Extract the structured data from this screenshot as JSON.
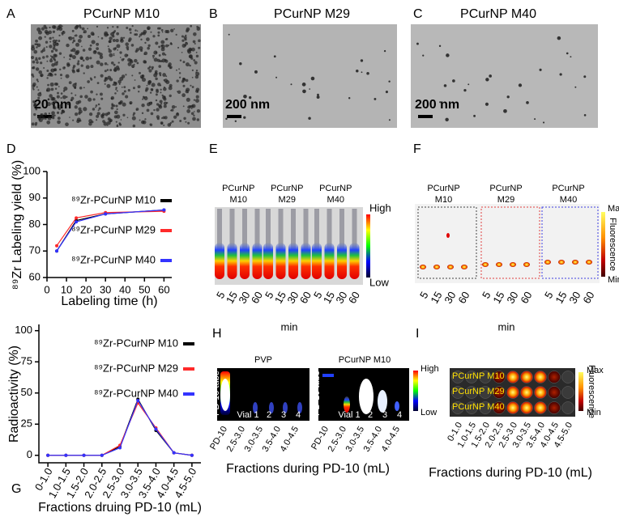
{
  "panels": {
    "A": {
      "label": "A",
      "title": "PCurNP M10",
      "scale_bar": "20 nm"
    },
    "B": {
      "label": "B",
      "title": "PCurNP M29",
      "scale_bar": "200 nm"
    },
    "C": {
      "label": "C",
      "title": "PCurNP M40",
      "scale_bar": "200 nm"
    },
    "E": {
      "label": "E",
      "groups": [
        [
          "PCurNP",
          "M10"
        ],
        [
          "PCurNP",
          "M29"
        ],
        [
          "PCurNP",
          "M40"
        ]
      ],
      "x_labels": [
        "5",
        "15",
        "30",
        "60"
      ],
      "x_title": "min",
      "colorbar": [
        "High",
        "Low"
      ]
    },
    "F": {
      "label": "F",
      "groups": [
        [
          "PCurNP",
          "M10"
        ],
        [
          "PCurNP",
          "M29"
        ],
        [
          "PCurNP",
          "M40"
        ]
      ],
      "x_labels": [
        "5",
        "15",
        "30",
        "60"
      ],
      "x_title": "min",
      "colorbar": [
        "Max",
        "Fluorescence",
        "Min"
      ]
    },
    "H": {
      "label": "H",
      "groups": [
        "PVP",
        "PCurNP M10"
      ],
      "tube": "PD-10 tube",
      "vials": [
        "Vial 1",
        "2",
        "3",
        "4"
      ],
      "x_labels": [
        "PD-10",
        "2.5-3.0",
        "3.0-3.5",
        "3.5-4.0",
        "4.0-4.5"
      ],
      "x_title": "Fractions during PD-10 (mL)",
      "colorbar": [
        "High",
        "Low"
      ]
    },
    "I": {
      "label": "I",
      "rows": [
        "PCurNP M10",
        "PCurNP M29",
        "PCurNP M40"
      ],
      "x_labels": [
        "0-1.0",
        "1.0-1.5",
        "1.5-2.0",
        "2.0-2.5",
        "2.5-3.0",
        "3.0-3.5",
        "3.5-4.0",
        "4.0-4.5",
        "4.5-5.0"
      ],
      "x_title": "Fractions during PD-10 (mL)",
      "colorbar": [
        "Max",
        "Fluorescence",
        "Min"
      ]
    }
  },
  "chart_data": [
    {
      "panel": "D",
      "type": "line",
      "x": [
        5,
        15,
        30,
        60
      ],
      "series": [
        {
          "name": "⁸⁹Zr-PCurNP M10",
          "color": "#000000",
          "values": [
            70,
            81.5,
            84,
            85.5
          ]
        },
        {
          "name": "⁸⁹Zr-PCurNP M29",
          "color": "#ff2a2a",
          "values": [
            72,
            82.5,
            84.5,
            85
          ]
        },
        {
          "name": "⁸⁹Zr-PCurNP M40",
          "color": "#3333ff",
          "values": [
            70,
            81,
            84,
            85.5
          ]
        }
      ],
      "xlim": [
        0,
        64
      ],
      "xticks": [
        0,
        10,
        20,
        30,
        40,
        50,
        60
      ],
      "ylim": [
        60,
        100
      ],
      "yticks": [
        60,
        70,
        80,
        90,
        100
      ],
      "x_label": "Labeling time (h)",
      "y_label": "⁸⁹Zr Labeling yield (%)"
    },
    {
      "panel": "G",
      "type": "line",
      "categories": [
        "0-1.0",
        "1.0-1.5",
        "1.5-2.0",
        "2.0-2.5",
        "2.5-3.0",
        "3.0-3.5",
        "3.5-4.0",
        "4.0-4.5",
        "4.5-5.0"
      ],
      "series": [
        {
          "name": "⁸⁹Zr-PCurNP M10",
          "color": "#000000",
          "values": [
            0,
            0,
            0,
            0,
            7,
            45,
            20,
            2,
            0
          ]
        },
        {
          "name": "⁸⁹Zr-PCurNP M29",
          "color": "#ff2a2a",
          "values": [
            0,
            0,
            0,
            0,
            8,
            42,
            22,
            2,
            0
          ]
        },
        {
          "name": "⁸⁹Zr-PCurNP M40",
          "color": "#3333ff",
          "values": [
            0,
            0,
            0,
            0,
            6,
            44,
            21,
            2,
            0
          ]
        }
      ],
      "ylim": [
        -6,
        105
      ],
      "yticks": [
        0,
        25,
        50,
        75,
        100
      ],
      "x_label": "Fractions druing PD-10 (mL)",
      "y_label": "Radioactivity  (%)"
    }
  ]
}
